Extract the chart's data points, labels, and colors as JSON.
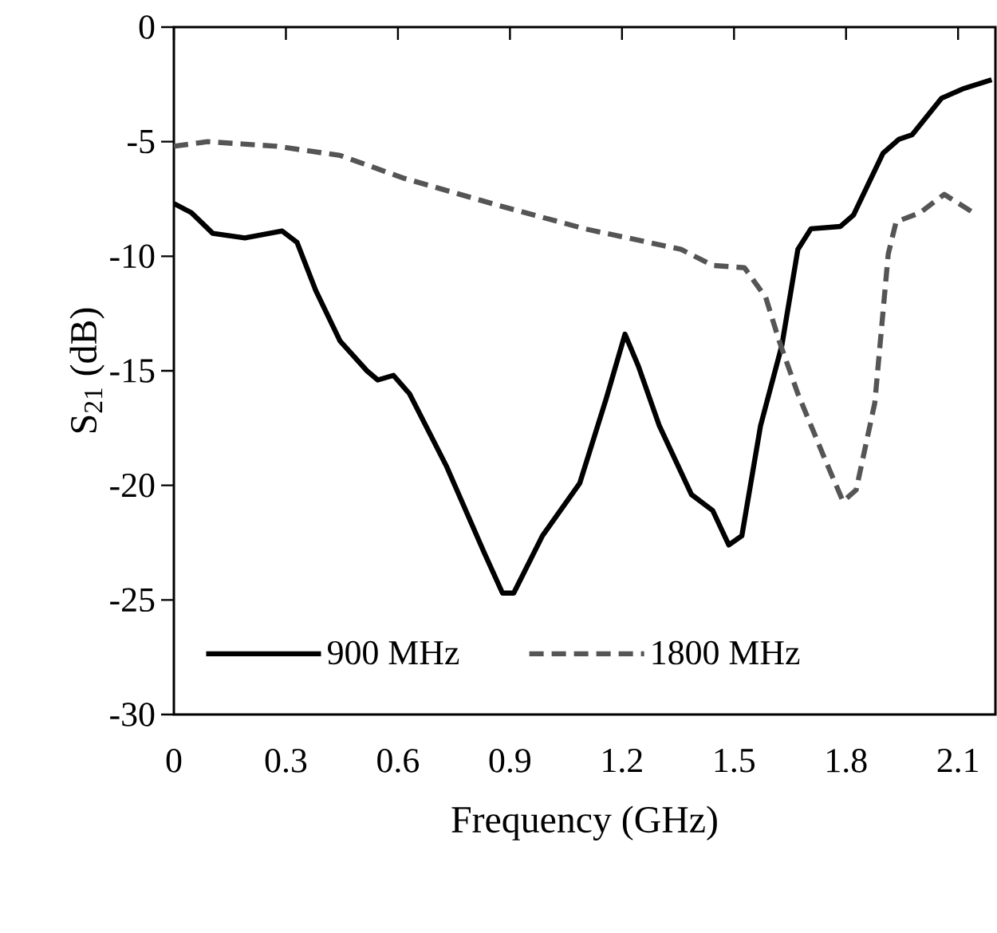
{
  "chart_data": {
    "type": "line",
    "xlabel": "Frequency (GHz)",
    "ylabel": "S$_{21}$ (dB)",
    "xlim": [
      0,
      2.2
    ],
    "ylim": [
      -30,
      0
    ],
    "xticks": [
      0,
      0.3,
      0.6,
      0.9,
      1.2,
      1.5,
      1.8,
      2.1
    ],
    "yticks": [
      -30,
      -25,
      -20,
      -15,
      -10,
      -5,
      0
    ],
    "grid": false,
    "legend": "bottom",
    "marker": "none",
    "series": [
      {
        "name": "900 MHz",
        "color": "#000000",
        "line_style": "solid",
        "x": [
          0,
          0.047,
          0.104,
          0.19,
          0.29,
          0.33,
          0.38,
          0.445,
          0.517,
          0.546,
          0.588,
          0.631,
          0.731,
          0.83,
          0.88,
          0.91,
          0.987,
          1.087,
          1.158,
          1.208,
          1.244,
          1.3,
          1.386,
          1.443,
          1.486,
          1.521,
          1.571,
          1.628,
          1.671,
          1.706,
          1.785,
          1.82,
          1.899,
          1.941,
          1.977,
          2.056,
          2.112,
          2.19
        ],
        "values": [
          -7.7,
          -8.1,
          -9.0,
          -9.2,
          -8.9,
          -9.4,
          -11.5,
          -13.7,
          -15.0,
          -15.4,
          -15.2,
          -16.0,
          -19.2,
          -22.9,
          -24.7,
          -24.7,
          -22.2,
          -19.9,
          -16.2,
          -13.4,
          -14.8,
          -17.4,
          -20.4,
          -21.1,
          -22.6,
          -22.2,
          -17.4,
          -13.9,
          -9.7,
          -8.8,
          -8.7,
          -8.2,
          -5.5,
          -4.9,
          -4.7,
          -3.1,
          -2.7,
          -2.3
        ]
      },
      {
        "name": "1800 MHz",
        "color": "#555555",
        "line_style": "dashed",
        "x": [
          0,
          0.09,
          0.275,
          0.445,
          0.617,
          0.873,
          1.1,
          1.358,
          1.443,
          1.528,
          1.585,
          1.621,
          1.671,
          1.742,
          1.792,
          1.827,
          1.877,
          1.913,
          1.934,
          1.998,
          2.063,
          2.141
        ],
        "values": [
          -5.2,
          -5.0,
          -5.2,
          -5.6,
          -6.6,
          -7.8,
          -8.8,
          -9.7,
          -10.4,
          -10.5,
          -11.8,
          -13.7,
          -16.0,
          -18.8,
          -20.7,
          -20.2,
          -16.4,
          -9.9,
          -8.5,
          -8.1,
          -7.3,
          -8.1
        ]
      }
    ]
  }
}
